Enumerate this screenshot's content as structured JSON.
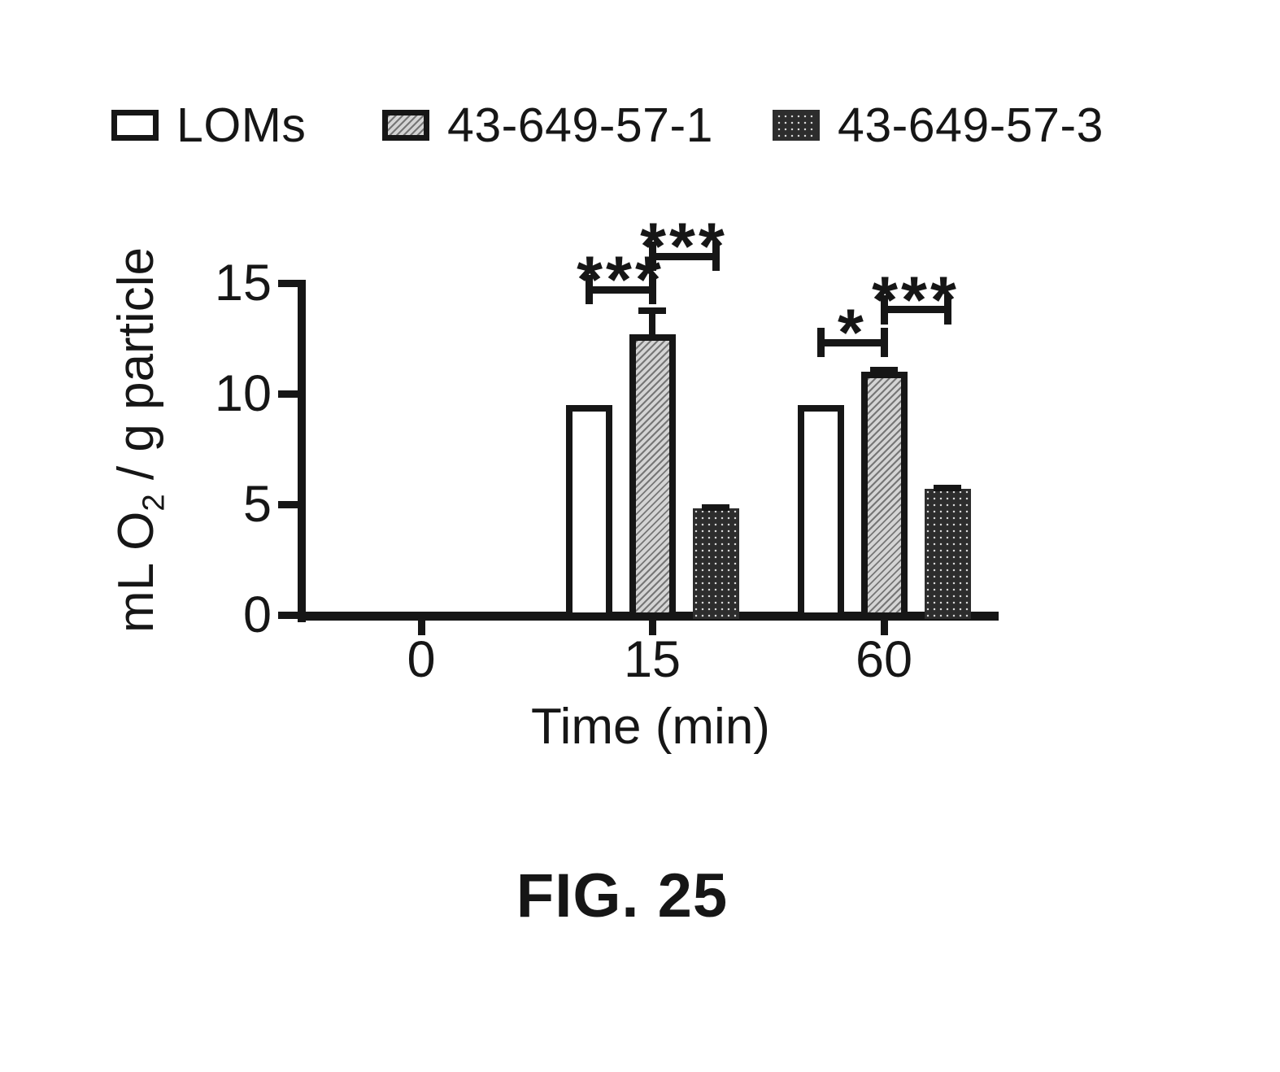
{
  "figure": {
    "caption": "FIG. 25"
  },
  "legend": [
    {
      "label": "LOMs",
      "swatch": "open-white-box"
    },
    {
      "label": "43-649-57-1",
      "swatch": "gray-hatched-box"
    },
    {
      "label": "43-649-57-3",
      "swatch": "dark-dotted-box"
    }
  ],
  "chart_data": {
    "type": "bar",
    "xlabel": "Time (min)",
    "ylabel": "mL O2 / g particle",
    "ylabel_parts": {
      "prefix": "mL O",
      "sub": "2",
      "suffix": " / g particle"
    },
    "categories": [
      "0",
      "15",
      "60"
    ],
    "y_ticks": [
      0,
      5,
      10,
      15
    ],
    "ylim": [
      0,
      15
    ],
    "grid": "off",
    "legend_position": "top",
    "series": [
      {
        "name": "LOMs",
        "style": "open",
        "values": [
          0,
          9.5,
          9.5
        ],
        "errors": [
          0,
          0,
          0
        ]
      },
      {
        "name": "43-649-57-1",
        "style": "hatch",
        "values": [
          0,
          12.7,
          11.0
        ],
        "errors": [
          0,
          1.2,
          0.2
        ]
      },
      {
        "name": "43-649-57-3",
        "style": "dark",
        "values": [
          0,
          4.8,
          5.7
        ],
        "errors": [
          0,
          0.2,
          0.2
        ]
      }
    ],
    "significance": [
      {
        "category": "15",
        "from": 0,
        "to": 1,
        "label": "***",
        "height": 14.7
      },
      {
        "category": "15",
        "from": 1,
        "to": 2,
        "label": "***",
        "height": 16.2
      },
      {
        "category": "60",
        "from": 0,
        "to": 1,
        "label": "*",
        "height": 12.3
      },
      {
        "category": "60",
        "from": 1,
        "to": 2,
        "label": "***",
        "height": 13.8
      }
    ],
    "colors": {
      "ink": "#161616",
      "open_fill": "#ffffff",
      "hatch_fill": "#d4d4d4",
      "dark_fill": "#2d2d2d"
    }
  }
}
